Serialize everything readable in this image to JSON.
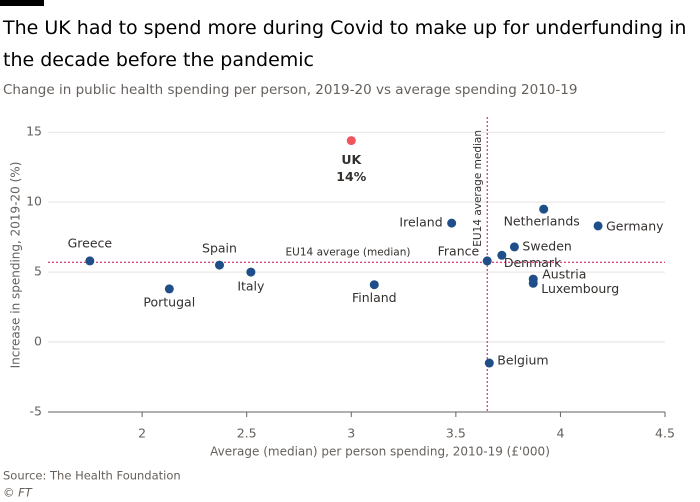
{
  "chart_data": {
    "type": "scatter",
    "title": "The UK had to spend more during Covid to make up for underfunding in the decade before the pandemic",
    "subtitle": "Change in public health spending per person, 2019-20 vs average spending 2010-19",
    "x_label": "Average (median) per person spending, 2010-19 (£'000)",
    "y_label": "Increase in spending, 2019-20 (%)",
    "labels": [
      "UK",
      "Greece",
      "Portugal",
      "Spain",
      "Italy",
      "Finland",
      "Ireland",
      "France",
      "Denmark",
      "Sweden",
      "Netherlands",
      "Germany",
      "Austria",
      "Luxembourg",
      "Belgium"
    ],
    "x": [
      3.0,
      1.75,
      2.13,
      2.37,
      2.52,
      3.11,
      3.48,
      3.65,
      3.72,
      3.78,
      3.92,
      4.18,
      3.87,
      3.87,
      3.66
    ],
    "values": [
      14.4,
      5.8,
      3.8,
      5.5,
      5.0,
      4.1,
      8.5,
      5.8,
      6.2,
      6.8,
      9.5,
      8.3,
      4.5,
      4.2,
      -1.5
    ],
    "value_labels": [
      "14%",
      null,
      null,
      null,
      null,
      null,
      null,
      null,
      null,
      null,
      null,
      null,
      null,
      null,
      null
    ],
    "colors": [
      "#f0545f",
      "#1f4e89",
      "#1f4e89",
      "#1f4e89",
      "#1f4e89",
      "#1f4e89",
      "#1f4e89",
      "#1f4e89",
      "#1f4e89",
      "#1f4e89",
      "#1f4e89",
      "#1f4e89",
      "#1f4e89",
      "#1f4e89",
      "#1f4e89"
    ],
    "xlim": [
      1.55,
      4.5
    ],
    "xticks": [
      2.0,
      2.5,
      3.0,
      3.5,
      4.0,
      4.5
    ],
    "ylim": [
      -5,
      15.8
    ],
    "yticks": [
      -5,
      0,
      5,
      10,
      15
    ],
    "grid": true,
    "reference_lines": {
      "horizontal": {
        "value": 5.7,
        "label": "EU14 average (median)"
      },
      "vertical": {
        "value": 3.65,
        "label": "EU14 average median"
      },
      "color": "#cc0a5a"
    },
    "source": "Source: The Health Foundation",
    "credit": "© FT"
  }
}
